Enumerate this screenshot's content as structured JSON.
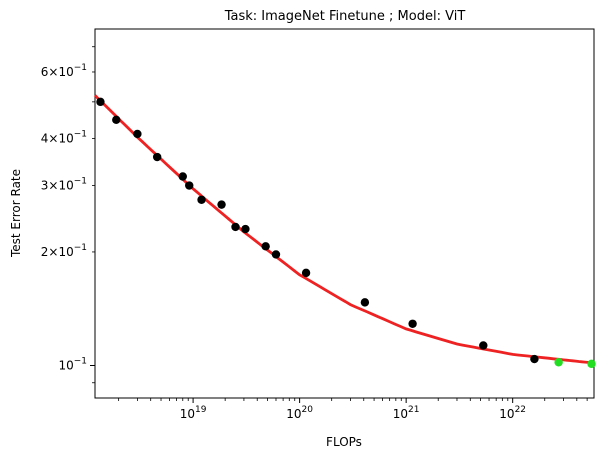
{
  "chart_data": {
    "type": "scatter",
    "title": "Task: ImageNet Finetune ; Model: ViT",
    "xlabel": "FLOPs",
    "ylabel": "Test Error Rate",
    "xscale": "log",
    "yscale": "log",
    "xlim": [
      1.2e+18,
      5.8e+22
    ],
    "ylim": [
      0.082,
      0.78
    ],
    "x_ticks": [
      {
        "value": 1e+19,
        "base": "10",
        "exp": "19"
      },
      {
        "value": 1e+20,
        "base": "10",
        "exp": "20"
      },
      {
        "value": 1e+21,
        "base": "10",
        "exp": "21"
      },
      {
        "value": 1e+22,
        "base": "10",
        "exp": "22"
      }
    ],
    "y_ticks": [
      {
        "value": 0.1,
        "mant": "",
        "base": "10",
        "exp": "−1"
      },
      {
        "value": 0.2,
        "mant": "2×",
        "base": "10",
        "exp": "−1"
      },
      {
        "value": 0.3,
        "mant": "3×",
        "base": "10",
        "exp": "−1"
      },
      {
        "value": 0.4,
        "mant": "4×",
        "base": "10",
        "exp": "−1"
      },
      {
        "value": 0.6,
        "mant": "6×",
        "base": "10",
        "exp": "−1"
      }
    ],
    "series": [
      {
        "points": [
          [
            1.35e+18,
            0.5
          ],
          [
            1.9e+18,
            0.448
          ],
          [
            3e+18,
            0.411
          ],
          [
            4.6e+18,
            0.357
          ],
          [
            8e+18,
            0.317
          ],
          [
            9.2e+18,
            0.3
          ],
          [
            1.2e+19,
            0.275
          ],
          [
            1.85e+19,
            0.267
          ],
          [
            2.5e+19,
            0.233
          ],
          [
            3.1e+19,
            0.23
          ],
          [
            4.8e+19,
            0.207
          ],
          [
            6e+19,
            0.197
          ],
          [
            1.15e+20,
            0.176
          ],
          [
            4.1e+20,
            0.147
          ],
          [
            1.15e+21,
            0.129
          ],
          [
            5.3e+21,
            0.113
          ],
          [
            1.6e+22,
            0.104
          ]
        ],
        "color": "#000000"
      },
      {
        "points": [
          [
            2.7e+22,
            0.102
          ],
          [
            5.5e+22,
            0.101
          ]
        ],
        "color": "#22dd22"
      }
    ],
    "fit_curve": {
      "color": "#ee2222",
      "points": [
        [
          1.2e+18,
          0.52
        ],
        [
          3e+18,
          0.403
        ],
        [
          1e+19,
          0.294
        ],
        [
          3e+19,
          0.226
        ],
        [
          1e+20,
          0.174
        ],
        [
          3e+20,
          0.145
        ],
        [
          1e+21,
          0.125
        ],
        [
          3e+21,
          0.114
        ],
        [
          1e+22,
          0.107
        ],
        [
          3e+22,
          0.1035
        ],
        [
          5.8e+22,
          0.1015
        ]
      ]
    },
    "grid": false
  }
}
